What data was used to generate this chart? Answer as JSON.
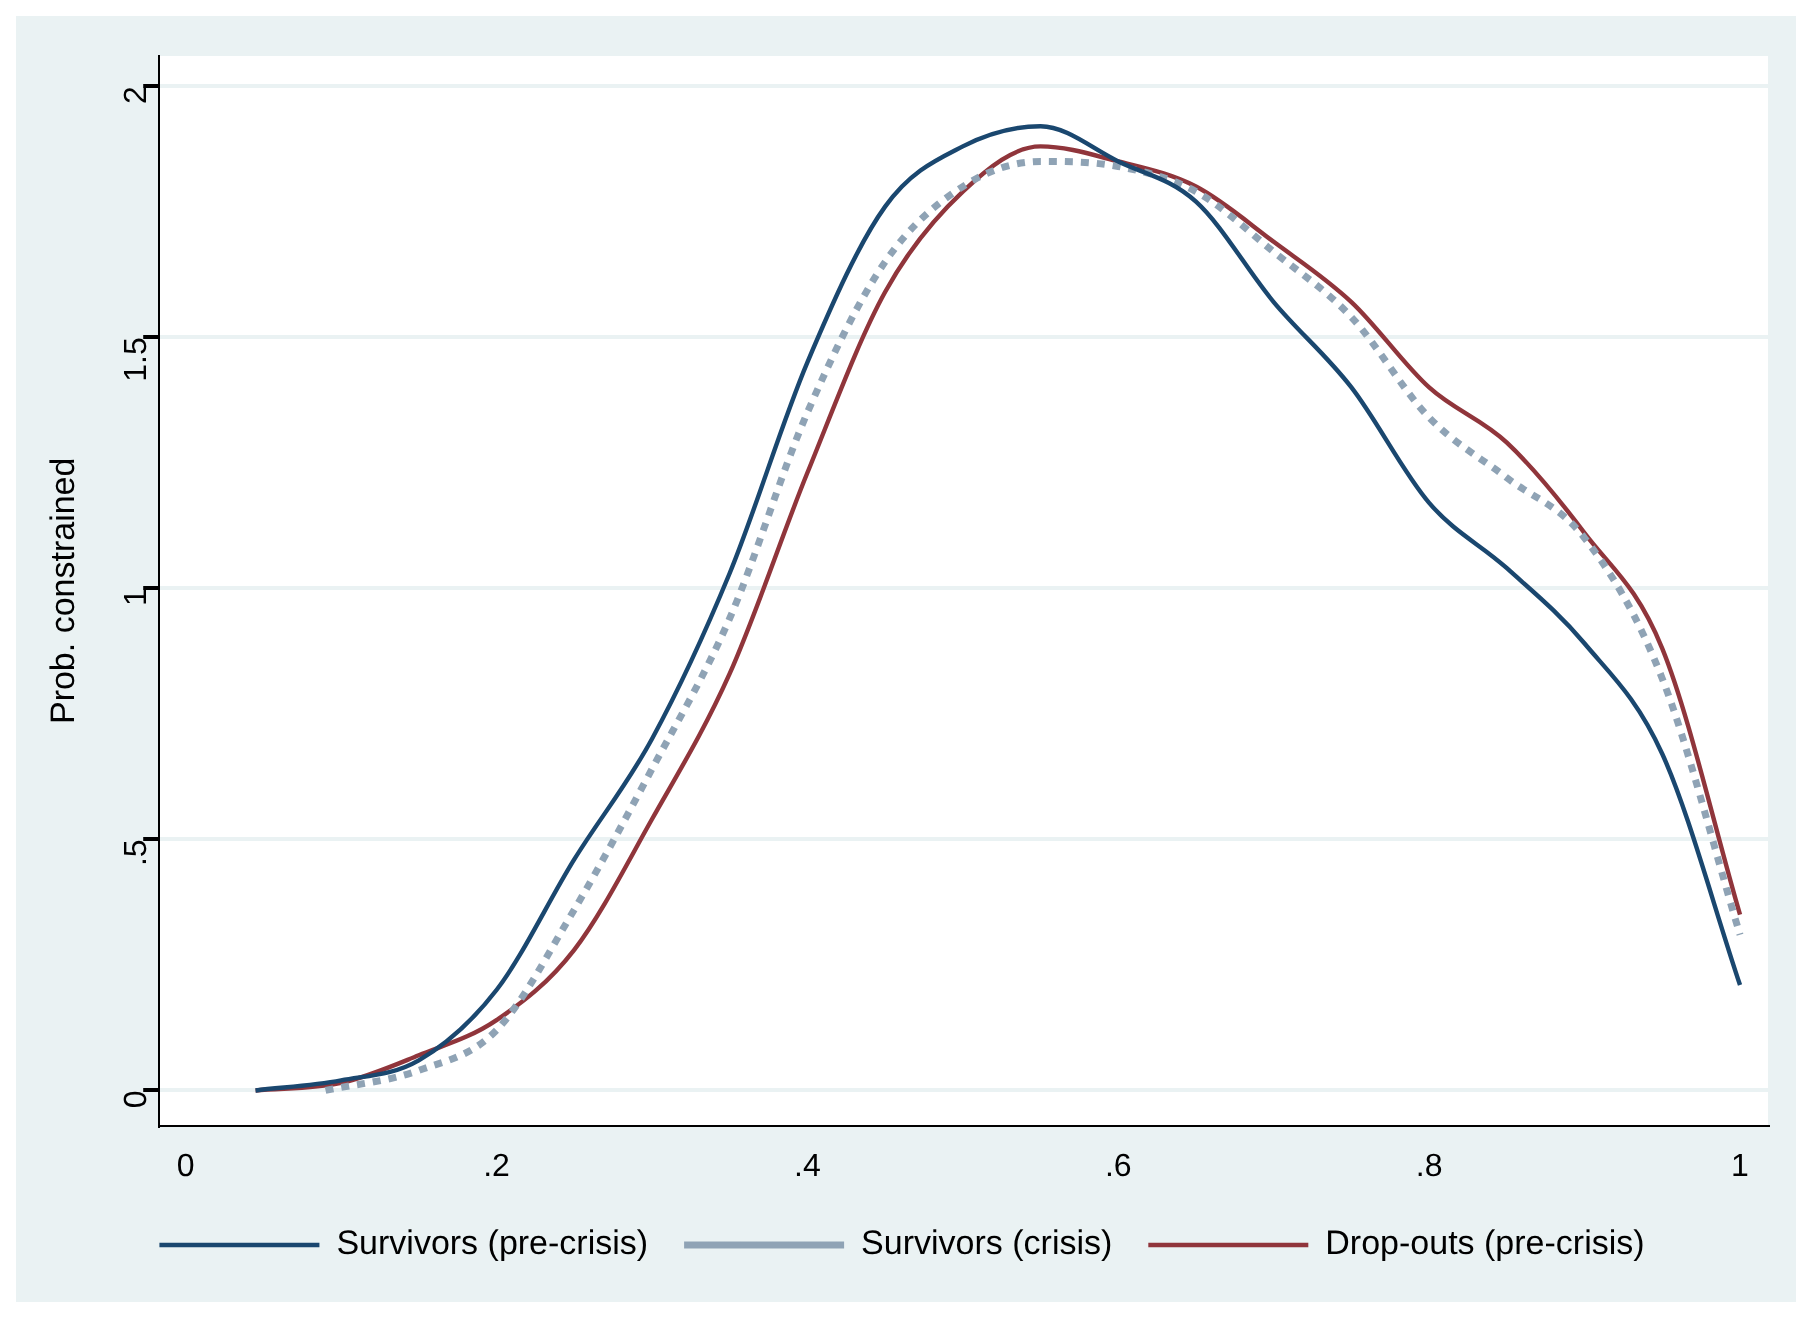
{
  "chart_data": {
    "type": "line",
    "ylabel": "Prob. constrained",
    "xlim": [
      -0.017,
      1.018
    ],
    "ylim": [
      -0.07,
      2.06
    ],
    "xticks": [
      0,
      {
        "value": 0.2,
        "label": ".2"
      },
      {
        "value": 0.4,
        "label": ".4"
      },
      {
        "value": 0.6,
        "label": ".6"
      },
      {
        "value": 0.8,
        "label": ".8"
      },
      1
    ],
    "yticks": [
      0,
      {
        "value": 0.5,
        "label": ".5"
      },
      1,
      1.5,
      2
    ],
    "grid": "y",
    "legend": "bottom",
    "marker": "none",
    "series": [
      {
        "name": "Survivors (pre-crisis)",
        "color": "#1a476f",
        "line_style": "solid",
        "x": [
          0.045,
          0.1,
          0.15,
          0.2,
          0.25,
          0.3,
          0.35,
          0.4,
          0.45,
          0.5,
          0.55,
          0.6,
          0.65,
          0.7,
          0.75,
          0.8,
          0.85,
          0.9,
          0.95,
          1.0
        ],
        "values": [
          0,
          0.02,
          0.06,
          0.2,
          0.46,
          0.7,
          1.03,
          1.45,
          1.76,
          1.88,
          1.92,
          1.85,
          1.77,
          1.57,
          1.4,
          1.17,
          1.04,
          0.89,
          0.67,
          0.21
        ]
      },
      {
        "name": "Survivors (crisis)",
        "color": "#8fa3b5",
        "line_style": "dotted",
        "x": [
          0.09,
          0.15,
          0.2,
          0.25,
          0.3,
          0.35,
          0.4,
          0.45,
          0.5,
          0.55,
          0.6,
          0.65,
          0.7,
          0.75,
          0.8,
          0.85,
          0.9,
          0.95,
          1.0
        ],
        "values": [
          0,
          0.04,
          0.12,
          0.36,
          0.64,
          0.94,
          1.35,
          1.65,
          1.8,
          1.85,
          1.84,
          1.79,
          1.67,
          1.54,
          1.34,
          1.22,
          1.1,
          0.82,
          0.31
        ]
      },
      {
        "name": "Drop-outs (pre-crisis)",
        "color": "#90353b",
        "line_style": "solid",
        "x": [
          0.045,
          0.1,
          0.15,
          0.2,
          0.25,
          0.3,
          0.35,
          0.4,
          0.45,
          0.5,
          0.55,
          0.6,
          0.65,
          0.7,
          0.75,
          0.8,
          0.85,
          0.9,
          0.95,
          1.0
        ],
        "values": [
          0,
          0.015,
          0.07,
          0.14,
          0.28,
          0.54,
          0.83,
          1.23,
          1.59,
          1.79,
          1.88,
          1.85,
          1.8,
          1.69,
          1.57,
          1.4,
          1.29,
          1.11,
          0.88,
          0.35
        ]
      }
    ]
  }
}
